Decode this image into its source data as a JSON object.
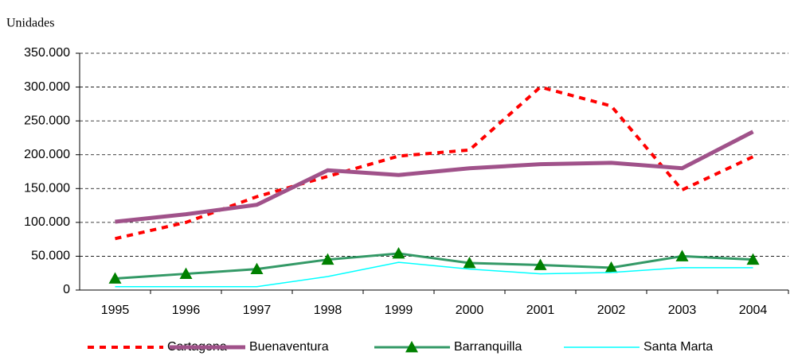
{
  "chart_data": {
    "type": "line",
    "ylabel": "Unidades",
    "categories": [
      "1995",
      "1996",
      "1997",
      "1998",
      "1999",
      "2000",
      "2001",
      "2002",
      "2003",
      "2004"
    ],
    "ylim": [
      0,
      350000
    ],
    "yticks": [
      0,
      {
        "value": 50000,
        "label": "50.000"
      },
      {
        "value": 100000,
        "label": "100.000"
      },
      {
        "value": 150000,
        "label": "150.000"
      },
      {
        "value": 200000,
        "label": "200.000"
      },
      {
        "value": 250000,
        "label": "250.000"
      },
      {
        "value": 300000,
        "label": "300.000"
      },
      {
        "value": 350000,
        "label": "350.000"
      }
    ],
    "grid": true,
    "legend": "bottom",
    "series": [
      {
        "name": "Cartagena",
        "color": "#ff0000",
        "style": "dashed",
        "width": 4,
        "values": [
          76000,
          100000,
          138000,
          168000,
          198000,
          207000,
          300000,
          272000,
          148000,
          197000
        ]
      },
      {
        "name": "Buenaventura",
        "color": "#a0528a",
        "style": "solid",
        "width": 5,
        "values": [
          101000,
          112000,
          126000,
          177000,
          170000,
          180000,
          186000,
          188000,
          180000,
          234000
        ]
      },
      {
        "name": "Barranquilla",
        "color": "#339966",
        "style": "solid",
        "width": 3,
        "marker": "triangle",
        "marker_color": "#008000",
        "values": [
          17000,
          24000,
          31000,
          45000,
          54000,
          40000,
          37000,
          33000,
          50000,
          45000
        ]
      },
      {
        "name": "Santa Marta",
        "color": "#00ffff",
        "style": "solid",
        "width": 1.5,
        "values": [
          5000,
          5000,
          5000,
          20000,
          41000,
          31000,
          24000,
          26000,
          33000,
          33000
        ]
      }
    ]
  }
}
